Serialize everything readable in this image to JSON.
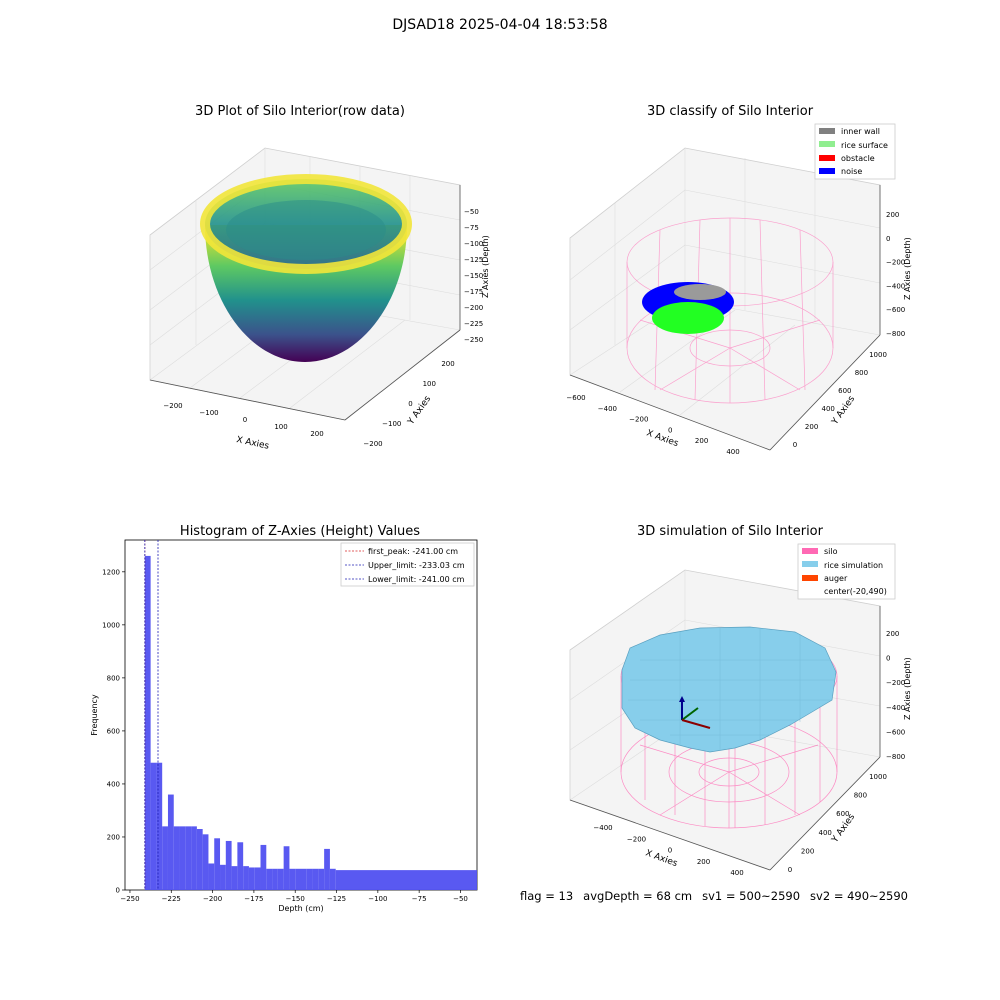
{
  "figure_title": "DJSAD18 2025-04-04 18:53:58",
  "footer": {
    "flag": "flag = 13",
    "avg_depth": "avgDepth = 68 cm",
    "sv1": "sv1 = 500~2590",
    "sv2": "sv2 = 490~2590"
  },
  "colors": {
    "hist_bar": "#5050f0",
    "first_peak": "#d62728",
    "limits": "#1f1fb4",
    "inner_wall": "#808080",
    "rice_surface": "#90ee90",
    "obstacle": "#ff0000",
    "noise": "#0000ff",
    "silo": "#ff69b4",
    "rice_simulation": "#87ceeb",
    "auger": "#ff4500"
  },
  "chart_data": [
    {
      "type": "scatter",
      "title": "3D Plot of Silo Interior(row data)",
      "xlabel": "X Axies",
      "ylabel": "Y Axies",
      "zlabel": "Z Axies (Depth)",
      "x_ticks": [
        "−200",
        "−100",
        "0",
        "100",
        "200"
      ],
      "y_ticks": [
        "−200",
        "−100",
        "0",
        "100",
        "200"
      ],
      "z_ticks": [
        "−50",
        "−75",
        "−100",
        "−125",
        "−150",
        "−175",
        "−200",
        "−225",
        "−250"
      ],
      "zlim": [
        -255,
        -40
      ],
      "colormap": "viridis"
    },
    {
      "type": "scatter",
      "title": "3D classify of Silo Interior",
      "xlabel": "X Axies",
      "ylabel": "Y Axies",
      "zlabel": "Z Axies (Depth)",
      "x_ticks": [
        "−600",
        "−400",
        "−200",
        "0",
        "200",
        "400"
      ],
      "y_ticks": [
        "0",
        "200",
        "400",
        "600",
        "800",
        "1000"
      ],
      "z_ticks": [
        "200",
        "0",
        "−200",
        "−400",
        "−600",
        "−800"
      ],
      "legend": [
        "inner wall",
        "rice surface",
        "obstacle",
        "noise"
      ],
      "legend_position": "top-right"
    },
    {
      "type": "bar",
      "title": "Histogram of Z-Axies (Height) Values",
      "xlabel": "Depth (cm)",
      "ylabel": "Frequency",
      "xlim": [
        -253,
        -40
      ],
      "ylim": [
        0,
        1320
      ],
      "x_ticks": [
        -250,
        -225,
        -200,
        -175,
        -150,
        -125,
        -100,
        -75,
        -50
      ],
      "y_ticks": [
        0,
        200,
        400,
        600,
        800,
        1000,
        1200
      ],
      "bins": [
        {
          "x0": -241,
          "x1": -237.5,
          "v": 1260
        },
        {
          "x0": -237.5,
          "x1": -234,
          "v": 480
        },
        {
          "x0": -234,
          "x1": -230.5,
          "v": 480
        },
        {
          "x0": -230.5,
          "x1": -227,
          "v": 240
        },
        {
          "x0": -227,
          "x1": -223.5,
          "v": 360
        },
        {
          "x0": -223.5,
          "x1": -220,
          "v": 240
        },
        {
          "x0": -220,
          "x1": -216.5,
          "v": 240
        },
        {
          "x0": -216.5,
          "x1": -213,
          "v": 240
        },
        {
          "x0": -213,
          "x1": -209.5,
          "v": 240
        },
        {
          "x0": -209.5,
          "x1": -206,
          "v": 230
        },
        {
          "x0": -206,
          "x1": -202.5,
          "v": 210
        },
        {
          "x0": -202.5,
          "x1": -199,
          "v": 100
        },
        {
          "x0": -199,
          "x1": -195.5,
          "v": 195
        },
        {
          "x0": -195.5,
          "x1": -192,
          "v": 95
        },
        {
          "x0": -192,
          "x1": -188.5,
          "v": 185
        },
        {
          "x0": -188.5,
          "x1": -185,
          "v": 90
        },
        {
          "x0": -185,
          "x1": -181.5,
          "v": 180
        },
        {
          "x0": -181.5,
          "x1": -178,
          "v": 90
        },
        {
          "x0": -178,
          "x1": -174.5,
          "v": 85
        },
        {
          "x0": -174.5,
          "x1": -171,
          "v": 85
        },
        {
          "x0": -171,
          "x1": -167.5,
          "v": 170
        },
        {
          "x0": -167.5,
          "x1": -164,
          "v": 80
        },
        {
          "x0": -164,
          "x1": -160.5,
          "v": 80
        },
        {
          "x0": -160.5,
          "x1": -157,
          "v": 80
        },
        {
          "x0": -157,
          "x1": -153.5,
          "v": 165
        },
        {
          "x0": -153.5,
          "x1": -150,
          "v": 80
        },
        {
          "x0": -150,
          "x1": -146.5,
          "v": 80
        },
        {
          "x0": -146.5,
          "x1": -143,
          "v": 80
        },
        {
          "x0": -143,
          "x1": -139.5,
          "v": 80
        },
        {
          "x0": -139.5,
          "x1": -136,
          "v": 80
        },
        {
          "x0": -136,
          "x1": -132.5,
          "v": 80
        },
        {
          "x0": -132.5,
          "x1": -129,
          "v": 155
        },
        {
          "x0": -129,
          "x1": -125.5,
          "v": 80
        },
        {
          "x0": -125.5,
          "x1": -40,
          "v": 75
        }
      ],
      "vlines": [
        {
          "label": "first_peak: -241.00 cm",
          "x": -241.0,
          "color": "#d62728"
        },
        {
          "label": "Upper_limit: -233.03 cm",
          "x": -233.03,
          "color": "#1f1fb4"
        },
        {
          "label": "Lower_limit: -241.00 cm",
          "x": -241.0,
          "color": "#1f1fb4"
        }
      ],
      "legend_position": "top-right"
    },
    {
      "type": "scatter",
      "title": "3D simulation of Silo Interior",
      "xlabel": "X Axies",
      "ylabel": "Y Axies",
      "zlabel": "Z Axies (Depth)",
      "x_ticks": [
        "−400",
        "−200",
        "0",
        "200",
        "400"
      ],
      "y_ticks": [
        "0",
        "200",
        "400",
        "600",
        "800",
        "1000"
      ],
      "z_ticks": [
        "200",
        "0",
        "−200",
        "−400",
        "−600",
        "−800"
      ],
      "legend": [
        "silo",
        "rice simulation",
        "auger",
        "center(-20,490)"
      ],
      "legend_position": "top-right"
    }
  ]
}
